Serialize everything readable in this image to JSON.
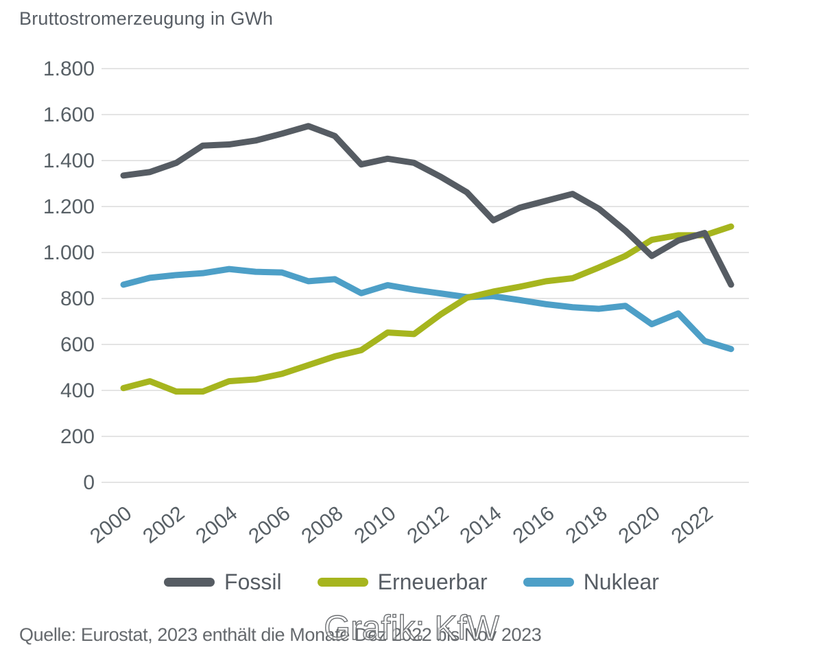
{
  "title": "Bruttostromerzeugung in GWh",
  "chart_data": {
    "type": "line",
    "x": [
      2000,
      2001,
      2002,
      2003,
      2004,
      2005,
      2006,
      2007,
      2008,
      2009,
      2010,
      2011,
      2012,
      2013,
      2014,
      2015,
      2016,
      2017,
      2018,
      2019,
      2020,
      2021,
      2022,
      2023
    ],
    "series": [
      {
        "name": "Fossil",
        "color": "#565c63",
        "values": [
          1335,
          1350,
          1390,
          1465,
          1470,
          1487,
          1517,
          1550,
          1507,
          1383,
          1408,
          1390,
          1330,
          1262,
          1140,
          1195,
          1225,
          1255,
          1190,
          1095,
          985,
          1052,
          1085,
          860
        ]
      },
      {
        "name": "Erneuerbar",
        "color": "#a6b51e",
        "values": [
          410,
          440,
          395,
          395,
          440,
          448,
          472,
          510,
          548,
          575,
          652,
          645,
          730,
          803,
          830,
          851,
          875,
          888,
          935,
          985,
          1055,
          1075,
          1075,
          1113
        ]
      },
      {
        "name": "Nuklear",
        "color": "#4d9fc7",
        "values": [
          860,
          890,
          902,
          910,
          928,
          916,
          913,
          875,
          884,
          823,
          858,
          838,
          822,
          806,
          810,
          793,
          775,
          762,
          755,
          768,
          688,
          735,
          615,
          580
        ]
      }
    ],
    "title": "Bruttostromerzeugung in GWh",
    "xlabel": "",
    "ylabel": "GWh",
    "ylim": [
      0,
      1800
    ],
    "ytick_step": 200,
    "ytick_labels": [
      "0",
      "200",
      "400",
      "600",
      "800",
      "1.000",
      "1.200",
      "1.400",
      "1.600",
      "1.800"
    ],
    "xtick_years": [
      2000,
      2002,
      2004,
      2006,
      2008,
      2010,
      2012,
      2014,
      2016,
      2018,
      2020,
      2022
    ],
    "grid": "horizontal",
    "grid_color": "#e4e4e4",
    "text_color": "#586066",
    "legend_position": "bottom"
  },
  "footer": {
    "source_note": "Quelle: Eurostat, 2023 enthält die Monate Dez 2022 bis Nov 2023"
  },
  "watermark": "Grafik: KfW"
}
